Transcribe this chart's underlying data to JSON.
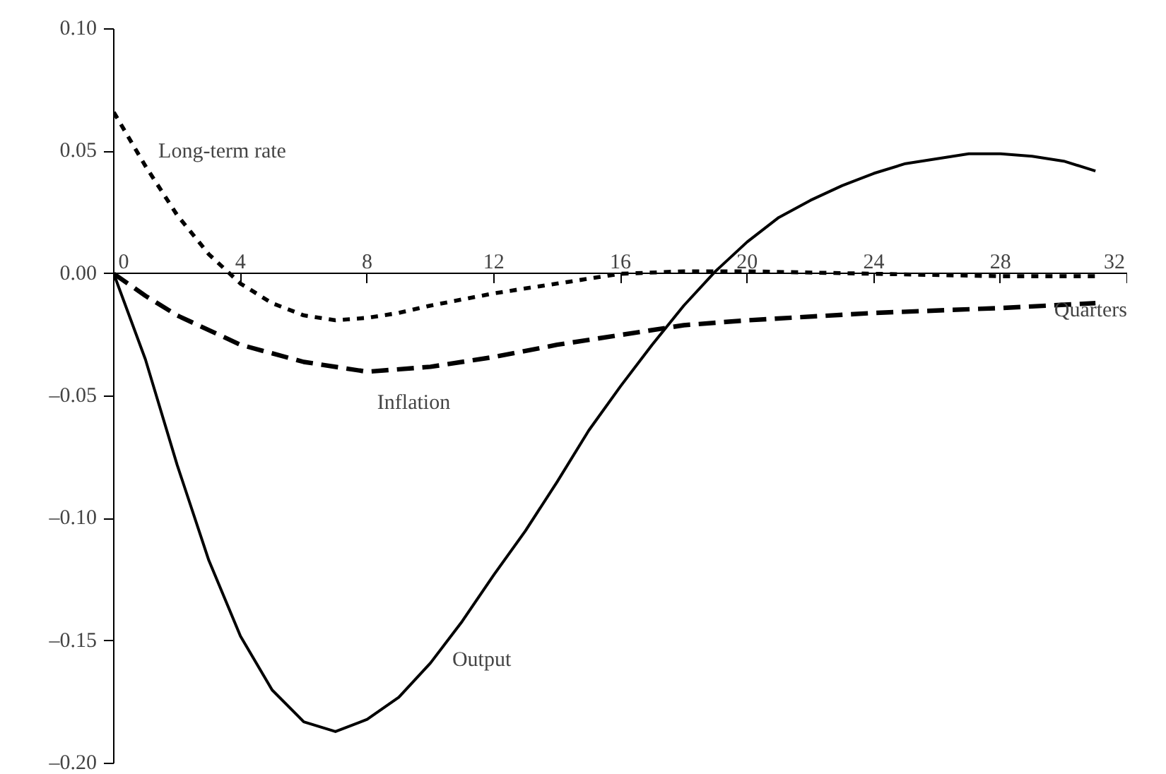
{
  "chart_data": {
    "type": "line",
    "xlabel": "Quarters",
    "xlim": [
      0,
      32
    ],
    "xticks": [
      0,
      4,
      8,
      12,
      16,
      20,
      24,
      28,
      32
    ],
    "ylim": [
      -0.2,
      0.1
    ],
    "yticks": [
      {
        "value": 0.1,
        "label": "0.10"
      },
      {
        "value": 0.05,
        "label": "0.05"
      },
      {
        "value": 0.0,
        "label": "0.00"
      },
      {
        "value": -0.05,
        "label": "–0.05"
      },
      {
        "value": -0.1,
        "label": "–0.10"
      },
      {
        "value": -0.15,
        "label": "–0.15"
      },
      {
        "value": -0.2,
        "label": "–0.20"
      }
    ],
    "grid": false,
    "series": [
      {
        "color": "#000000",
        "line_style": "solid",
        "x": [
          0,
          1,
          2,
          3,
          4,
          5,
          6,
          7,
          8,
          9,
          10,
          11,
          12,
          13,
          14,
          15,
          16,
          17,
          18,
          19,
          20,
          21,
          22,
          23,
          24,
          25,
          26,
          27,
          28,
          29,
          30,
          31
        ],
        "values": [
          0,
          -0.035,
          -0.078,
          -0.117,
          -0.148,
          -0.17,
          -0.183,
          -0.187,
          -0.182,
          -0.173,
          -0.159,
          -0.142,
          -0.123,
          -0.105,
          -0.085,
          -0.064,
          -0.046,
          -0.029,
          -0.013,
          0.001,
          0.013,
          0.023,
          0.03,
          0.036,
          0.041,
          0.045,
          0.047,
          0.049,
          0.049,
          0.048,
          0.046,
          0.042
        ]
      },
      {
        "color": "#000000",
        "line_style": "dashed",
        "x": [
          0,
          1,
          2,
          4,
          6,
          8,
          10,
          12,
          14,
          16,
          18,
          20,
          24,
          28,
          31
        ],
        "values": [
          0,
          -0.009,
          -0.017,
          -0.029,
          -0.036,
          -0.04,
          -0.038,
          -0.034,
          -0.029,
          -0.025,
          -0.021,
          -0.019,
          -0.016,
          -0.014,
          -0.012
        ]
      },
      {
        "color": "#000000",
        "line_style": "dotted",
        "x": [
          0,
          1,
          2,
          3,
          4,
          5,
          6,
          7,
          8,
          9,
          10,
          12,
          14,
          16,
          18,
          20,
          24,
          28,
          31
        ],
        "values": [
          0.066,
          0.044,
          0.024,
          0.008,
          -0.004,
          -0.012,
          -0.017,
          -0.019,
          -0.018,
          -0.016,
          -0.013,
          -0.008,
          -0.004,
          0.0,
          0.001,
          0.001,
          0.0,
          -0.001,
          -0.001
        ]
      }
    ],
    "annotations": [
      "Long-term rate",
      "Inflation",
      "Output"
    ]
  }
}
